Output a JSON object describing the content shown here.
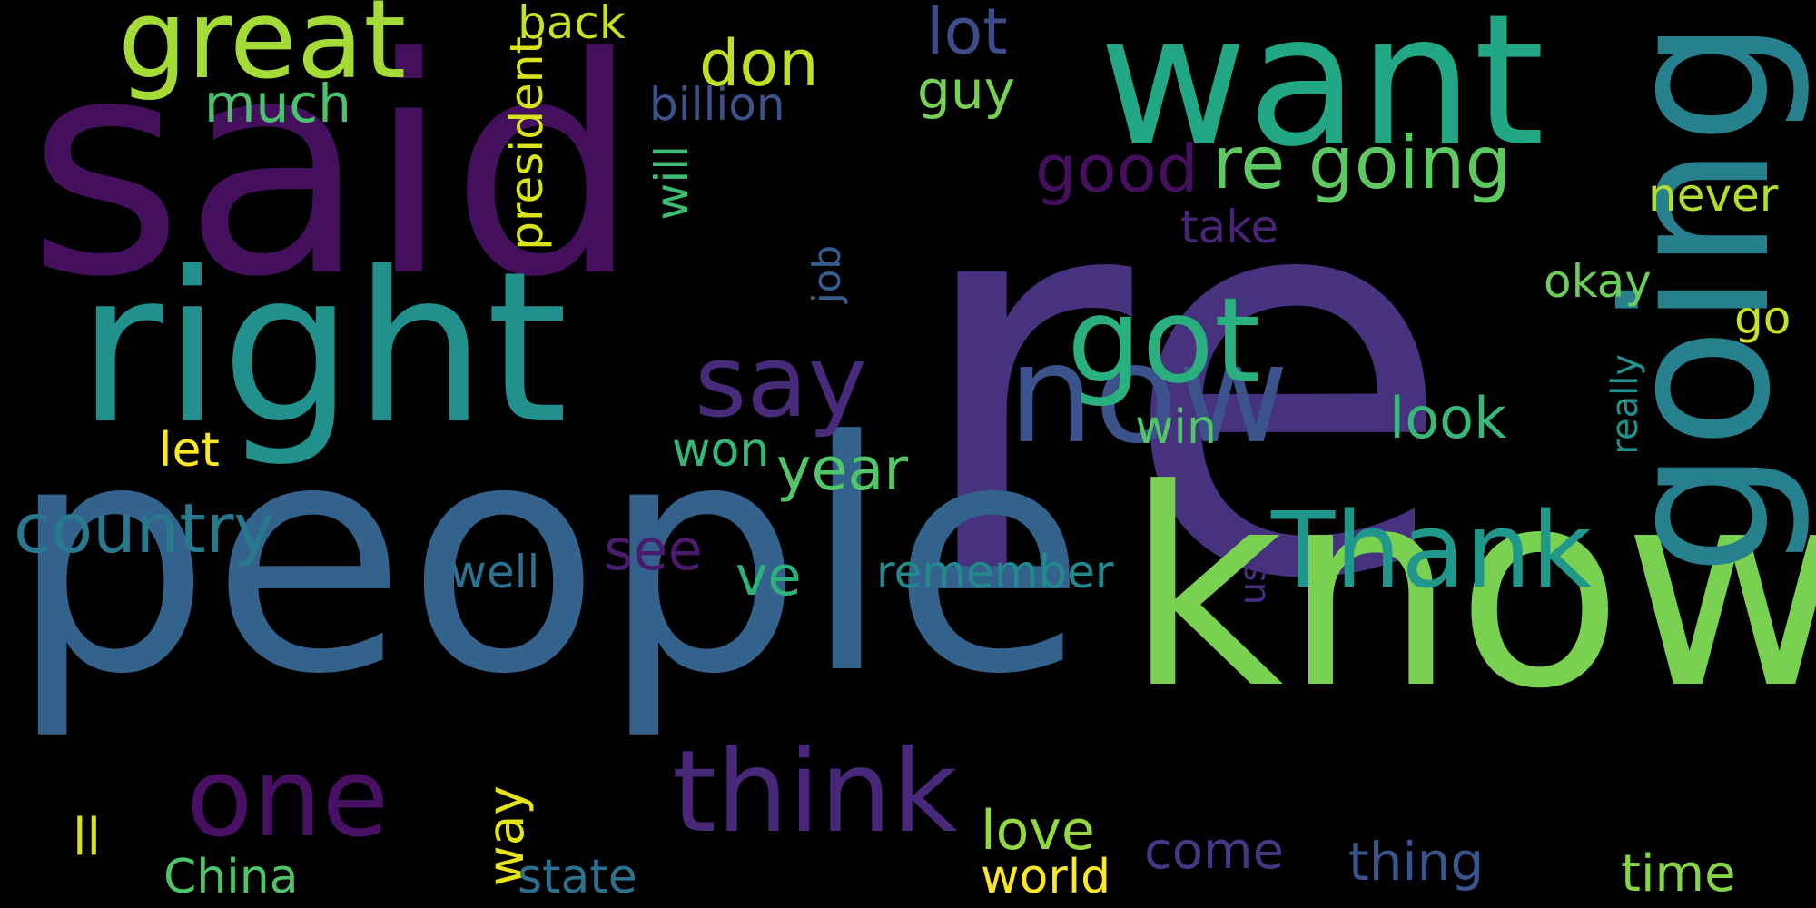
{
  "background": "#000000",
  "words": [
    {
      "text": "re",
      "color": "#46327e",
      "vertical": false
    },
    {
      "text": "said",
      "color": "#440f5d",
      "vertical": false
    },
    {
      "text": "people",
      "color": "#33638d",
      "vertical": false
    },
    {
      "text": "know",
      "color": "#7ad151",
      "vertical": false
    },
    {
      "text": "right",
      "color": "#22908c",
      "vertical": false
    },
    {
      "text": "want",
      "color": "#22a784",
      "vertical": false
    },
    {
      "text": "going",
      "color": "#27808e",
      "vertical": true
    },
    {
      "text": "now",
      "color": "#3b528b",
      "vertical": false
    },
    {
      "text": "great",
      "color": "#a5db36",
      "vertical": false
    },
    {
      "text": "got",
      "color": "#2ab07f",
      "vertical": false
    },
    {
      "text": "think",
      "color": "#482878",
      "vertical": false
    },
    {
      "text": "one",
      "color": "#471063",
      "vertical": false
    },
    {
      "text": "Thank",
      "color": "#1f988b",
      "vertical": false
    },
    {
      "text": "say",
      "color": "#482a7a",
      "vertical": false
    },
    {
      "text": "country",
      "color": "#2a788e",
      "vertical": false
    },
    {
      "text": "re going",
      "color": "#5ec962",
      "vertical": false
    },
    {
      "text": "don",
      "color": "#bddf26",
      "vertical": false
    },
    {
      "text": "lot",
      "color": "#3e4c8a",
      "vertical": false
    },
    {
      "text": "good",
      "color": "#440f5d",
      "vertical": false
    },
    {
      "text": "back",
      "color": "#c8e020",
      "vertical": false
    },
    {
      "text": "much",
      "color": "#4ac16d",
      "vertical": false
    },
    {
      "text": "billion",
      "color": "#3b528b",
      "vertical": false
    },
    {
      "text": "guy",
      "color": "#75d054",
      "vertical": false
    },
    {
      "text": "president",
      "color": "#dae319",
      "vertical": true
    },
    {
      "text": "will",
      "color": "#3dbc74",
      "vertical": true
    },
    {
      "text": "job",
      "color": "#365d8d",
      "vertical": true
    },
    {
      "text": "take",
      "color": "#482475",
      "vertical": false
    },
    {
      "text": "never",
      "color": "#b0dd2f",
      "vertical": false
    },
    {
      "text": "okay",
      "color": "#6ccd5a",
      "vertical": false
    },
    {
      "text": "go",
      "color": "#cae11f",
      "vertical": false
    },
    {
      "text": "let",
      "color": "#fde725",
      "vertical": false
    },
    {
      "text": "won",
      "color": "#35b779",
      "vertical": false
    },
    {
      "text": "year",
      "color": "#52c569",
      "vertical": false
    },
    {
      "text": "win",
      "color": "#52c569",
      "vertical": false
    },
    {
      "text": "look",
      "color": "#37b878",
      "vertical": false
    },
    {
      "text": "really",
      "color": "#20928c",
      "vertical": true
    },
    {
      "text": "see",
      "color": "#481b6d",
      "vertical": false
    },
    {
      "text": "well",
      "color": "#2c728e",
      "vertical": false
    },
    {
      "text": "ve",
      "color": "#2db27d",
      "vertical": false
    },
    {
      "text": "remember",
      "color": "#23898e",
      "vertical": false
    },
    {
      "text": "us",
      "color": "#472d7b",
      "vertical": true
    },
    {
      "text": "way",
      "color": "#e5e419",
      "vertical": true
    },
    {
      "text": "ll",
      "color": "#d8e219",
      "vertical": false
    },
    {
      "text": "China",
      "color": "#50c46a",
      "vertical": false
    },
    {
      "text": "state",
      "color": "#2d718e",
      "vertical": false
    },
    {
      "text": "love",
      "color": "#93d741",
      "vertical": false
    },
    {
      "text": "world",
      "color": "#fde725",
      "vertical": false
    },
    {
      "text": "come",
      "color": "#453781",
      "vertical": false
    },
    {
      "text": "thing",
      "color": "#3a548c",
      "vertical": false
    },
    {
      "text": "time",
      "color": "#86d549",
      "vertical": false
    }
  ]
}
